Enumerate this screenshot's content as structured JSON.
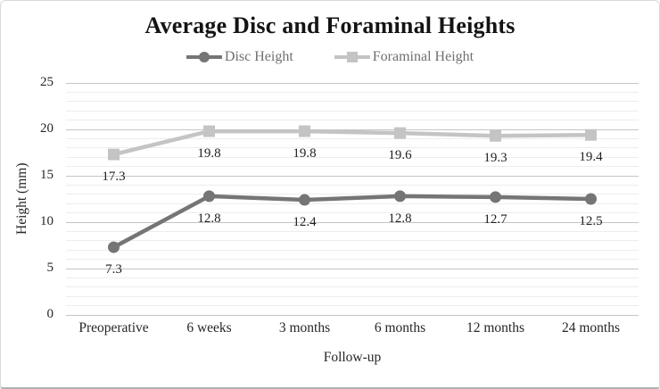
{
  "chart_data": {
    "type": "line",
    "title": "Average Disc and Foraminal Heights",
    "categories": [
      "Preoperative",
      "6 weeks",
      "3 months",
      "6 months",
      "12 months",
      "24 months"
    ],
    "series": [
      {
        "name": "Disc Height",
        "values": [
          7.3,
          12.8,
          12.4,
          12.8,
          12.7,
          12.5
        ],
        "color": "#757575",
        "marker": "circle"
      },
      {
        "name": "Foraminal Height",
        "values": [
          17.3,
          19.8,
          19.8,
          19.6,
          19.3,
          19.4
        ],
        "color": "#c4c4c4",
        "marker": "square"
      }
    ],
    "xlabel": "Follow-up",
    "ylabel": "Height (mm)",
    "ylim": [
      0,
      25
    ],
    "y_ticks": [
      0,
      5,
      10,
      15,
      20,
      25
    ],
    "y_minor_unit": 1,
    "grid": "horizontal",
    "legend_position": "top",
    "data_labels": true,
    "colors": {
      "major_gridline": "#c5c5c5",
      "minor_gridline": "#ededed",
      "tick_text": "#262626",
      "legend_text": "#6f6f6f",
      "title_text": "#141414"
    }
  }
}
